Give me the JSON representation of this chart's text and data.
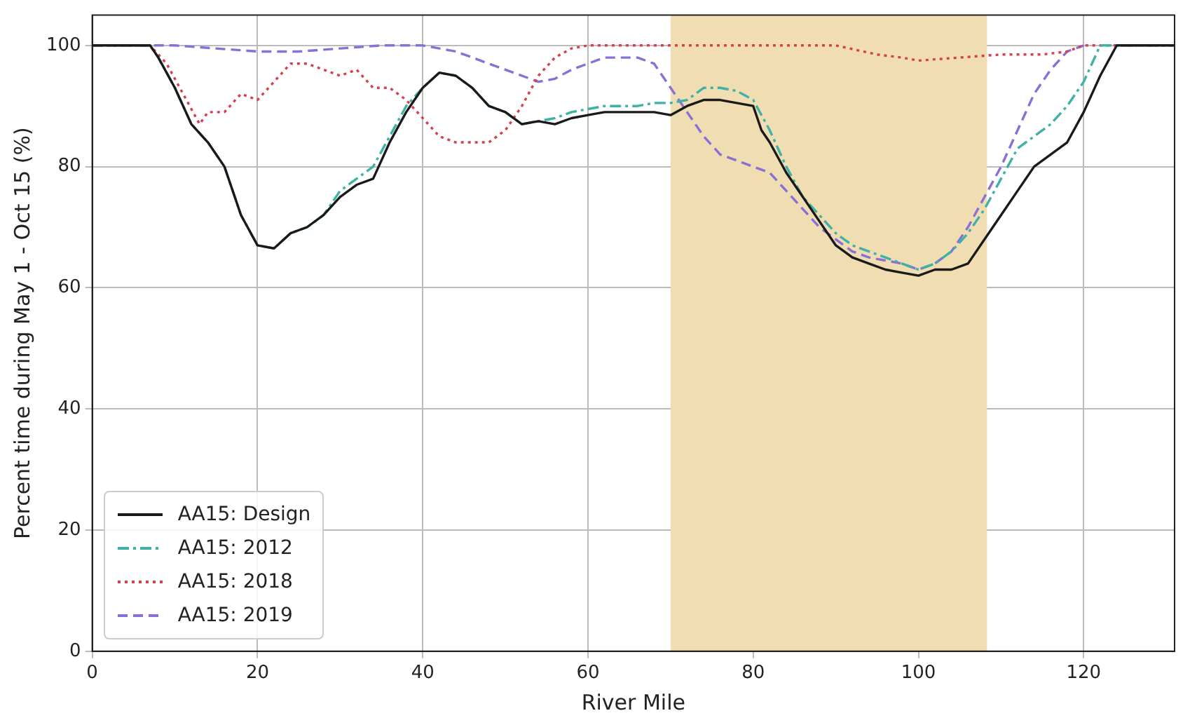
{
  "chart_data": {
    "type": "line",
    "xlabel": "River Mile",
    "ylabel": "Percent time during May 1 - Oct 15 (%)",
    "xlim": [
      0,
      131
    ],
    "xticks": [
      0,
      20,
      40,
      60,
      80,
      100,
      120
    ],
    "ylim": [
      0,
      105
    ],
    "yticks": [
      0,
      20,
      40,
      60,
      80,
      100
    ],
    "grid": true,
    "legend": "bottom left",
    "marker": "none",
    "bands": [
      {
        "axis": "x",
        "from": 70,
        "to": 108.3,
        "color": "#f0deb2"
      }
    ],
    "series": [
      {
        "name": "AA15: Design",
        "color": "#1a1a1a",
        "line_style": "solid",
        "x": [
          0,
          7,
          8,
          10,
          12,
          14,
          16,
          17,
          18,
          20,
          22,
          24,
          26,
          28,
          30,
          32,
          34,
          36,
          38,
          40,
          42,
          44,
          46,
          48,
          50,
          52,
          54,
          56,
          58,
          60,
          62,
          64,
          66,
          68,
          70,
          72,
          74,
          76,
          78,
          80,
          81,
          82,
          84,
          86,
          88,
          90,
          92,
          94,
          96,
          98,
          100,
          102,
          104,
          106,
          108,
          110,
          112,
          114,
          116,
          118,
          120,
          122,
          124,
          131
        ],
        "values": [
          100,
          100,
          98,
          93,
          87,
          84,
          80,
          76,
          72,
          67,
          66.5,
          69,
          70,
          72,
          75,
          77,
          78,
          84,
          89,
          93,
          95.5,
          95,
          93,
          90,
          89,
          87,
          87.5,
          87,
          88,
          88.5,
          89,
          89,
          89,
          89,
          88.5,
          90,
          91,
          91,
          90.5,
          90,
          86,
          84,
          79,
          75,
          71,
          67,
          65,
          64,
          63,
          62.5,
          62,
          63,
          63,
          64,
          68,
          72,
          76,
          80,
          82,
          84,
          89,
          95,
          100,
          100
        ]
      },
      {
        "name": "AA15: 2012",
        "color": "#3fb2a6",
        "line_style": "dashdot",
        "x": [
          0,
          7,
          8,
          10,
          12,
          14,
          16,
          17,
          18,
          20,
          22,
          24,
          26,
          28,
          30,
          32,
          34,
          36,
          38,
          40,
          42,
          44,
          46,
          48,
          50,
          52,
          54,
          56,
          58,
          60,
          62,
          64,
          66,
          68,
          70,
          72,
          74,
          76,
          78,
          80,
          82,
          84,
          86,
          88,
          90,
          92,
          94,
          96,
          98,
          100,
          102,
          104,
          106,
          108,
          110,
          112,
          114,
          116,
          118,
          120,
          122,
          131
        ],
        "values": [
          100,
          100,
          98,
          93,
          87,
          84,
          80,
          76,
          72,
          67,
          66.5,
          69,
          70,
          72,
          76,
          78,
          80,
          85,
          90,
          93,
          95.5,
          95,
          93,
          90,
          89,
          87,
          87.5,
          88,
          89,
          89.5,
          90,
          90,
          90,
          90.5,
          90.5,
          91,
          93,
          93,
          92.5,
          91,
          86,
          80,
          75,
          72,
          69,
          67,
          66,
          65,
          64,
          63,
          64,
          66,
          69,
          73,
          78,
          83,
          85,
          87,
          90,
          94,
          100,
          100
        ]
      },
      {
        "name": "AA15: 2018",
        "color": "#d6404e",
        "line_style": "dotted",
        "x": [
          0,
          7,
          9,
          11,
          13,
          14,
          16,
          18,
          20,
          22,
          24,
          26,
          28,
          30,
          32,
          34,
          36,
          38,
          40,
          42,
          44,
          48,
          50,
          52,
          54,
          56,
          58,
          60,
          90,
          95,
          98,
          100,
          105,
          110,
          115,
          118,
          120,
          131
        ],
        "values": [
          100,
          100,
          97,
          92,
          87,
          89,
          89,
          92,
          91,
          94,
          97,
          97,
          96,
          95,
          96,
          93,
          93,
          91,
          88,
          85,
          84,
          84,
          86,
          90,
          95,
          98,
          99.5,
          100,
          100,
          98.5,
          98,
          97.5,
          98,
          98.5,
          98.5,
          99,
          100,
          100
        ]
      },
      {
        "name": "AA15: 2019",
        "color": "#8a70d6",
        "line_style": "dashed",
        "x": [
          0,
          10,
          15,
          20,
          25,
          30,
          35,
          40,
          44,
          48,
          52,
          54,
          56,
          58,
          62,
          66,
          68,
          70,
          72,
          74,
          76,
          78,
          80,
          82,
          84,
          86,
          88,
          90,
          92,
          94,
          96,
          98,
          100,
          102,
          104,
          106,
          108,
          110,
          112,
          114,
          116,
          118,
          120
        ],
        "values": [
          100,
          100,
          99.5,
          99,
          99,
          99.5,
          100,
          100,
          99,
          97,
          95,
          94,
          94.5,
          96,
          98,
          98,
          97,
          93,
          89,
          85,
          82,
          81,
          80,
          79,
          76,
          73,
          70,
          68,
          66,
          65,
          64.5,
          64,
          63,
          64,
          66,
          70,
          75,
          80,
          86,
          92,
          96,
          99,
          100
        ]
      }
    ]
  }
}
